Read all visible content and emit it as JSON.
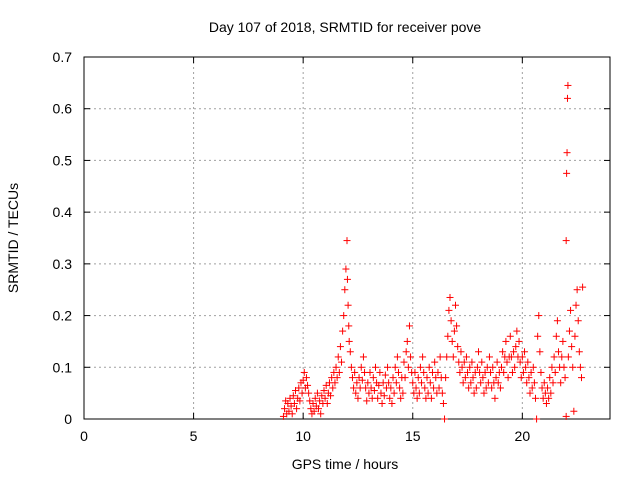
{
  "chart_data": {
    "type": "scatter",
    "title": "Day 107 of 2018, SRMTID for receiver pove",
    "xlabel": "GPS time / hours",
    "ylabel": "SRMTID / TECUs",
    "xlim": [
      0,
      24
    ],
    "ylim": [
      0,
      0.7
    ],
    "x_ticks": [
      0,
      5,
      10,
      15,
      20
    ],
    "x_tick_labels": [
      "0",
      "5",
      "10",
      "15",
      "20"
    ],
    "y_ticks": [
      0,
      0.1,
      0.2,
      0.3,
      0.4,
      0.5,
      0.6,
      0.7
    ],
    "y_tick_labels": [
      "0",
      "0.1",
      "0.2",
      "0.3",
      "0.4",
      "0.5",
      "0.6",
      "0.7"
    ],
    "grid": true,
    "marker": "+",
    "color": "#ff0000",
    "series": [
      {
        "name": "SRMTID",
        "points": [
          [
            9.1,
            0.005
          ],
          [
            9.15,
            0.02
          ],
          [
            9.2,
            0.035
          ],
          [
            9.25,
            0.01
          ],
          [
            9.3,
            0.03
          ],
          [
            9.35,
            0.015
          ],
          [
            9.4,
            0.04
          ],
          [
            9.45,
            0.025
          ],
          [
            9.5,
            0.01
          ],
          [
            9.55,
            0.045
          ],
          [
            9.6,
            0.03
          ],
          [
            9.65,
            0.055
          ],
          [
            9.7,
            0.02
          ],
          [
            9.75,
            0.04
          ],
          [
            9.8,
            0.06
          ],
          [
            9.85,
            0.035
          ],
          [
            9.9,
            0.07
          ],
          [
            9.95,
            0.05
          ],
          [
            10.0,
            0.075
          ],
          [
            10.05,
            0.09
          ],
          [
            10.1,
            0.06
          ],
          [
            10.15,
            0.08
          ],
          [
            10.2,
            0.065
          ],
          [
            10.25,
            0.05
          ],
          [
            10.3,
            0.035
          ],
          [
            10.35,
            0.02
          ],
          [
            10.4,
            0.01
          ],
          [
            10.45,
            0.03
          ],
          [
            10.5,
            0.015
          ],
          [
            10.55,
            0.04
          ],
          [
            10.6,
            0.025
          ],
          [
            10.65,
            0.05
          ],
          [
            10.7,
            0.02
          ],
          [
            10.75,
            0.035
          ],
          [
            10.8,
            0.01
          ],
          [
            10.85,
            0.045
          ],
          [
            10.9,
            0.03
          ],
          [
            10.95,
            0.055
          ],
          [
            11.0,
            0.04
          ],
          [
            11.05,
            0.065
          ],
          [
            11.1,
            0.03
          ],
          [
            11.15,
            0.05
          ],
          [
            11.2,
            0.07
          ],
          [
            11.25,
            0.045
          ],
          [
            11.3,
            0.08
          ],
          [
            11.35,
            0.06
          ],
          [
            11.4,
            0.09
          ],
          [
            11.45,
            0.07
          ],
          [
            11.5,
            0.1
          ],
          [
            11.55,
            0.08
          ],
          [
            11.6,
            0.12
          ],
          [
            11.65,
            0.09
          ],
          [
            11.7,
            0.14
          ],
          [
            11.75,
            0.11
          ],
          [
            11.8,
            0.17
          ],
          [
            11.85,
            0.2
          ],
          [
            11.9,
            0.25
          ],
          [
            11.95,
            0.29
          ],
          [
            12.0,
            0.345
          ],
          [
            12.02,
            0.27
          ],
          [
            12.05,
            0.22
          ],
          [
            12.08,
            0.18
          ],
          [
            12.1,
            0.15
          ],
          [
            12.15,
            0.13
          ],
          [
            12.2,
            0.1
          ],
          [
            12.25,
            0.08
          ],
          [
            12.3,
            0.06
          ],
          [
            12.35,
            0.09
          ],
          [
            12.4,
            0.05
          ],
          [
            12.45,
            0.07
          ],
          [
            12.5,
            0.04
          ],
          [
            12.55,
            0.08
          ],
          [
            12.6,
            0.06
          ],
          [
            12.65,
            0.1
          ],
          [
            12.7,
            0.075
          ],
          [
            12.75,
            0.12
          ],
          [
            12.8,
            0.09
          ],
          [
            12.85,
            0.06
          ],
          [
            12.9,
            0.035
          ],
          [
            12.95,
            0.07
          ],
          [
            13.0,
            0.05
          ],
          [
            13.05,
            0.09
          ],
          [
            13.1,
            0.06
          ],
          [
            13.15,
            0.04
          ],
          [
            13.2,
            0.08
          ],
          [
            13.25,
            0.055
          ],
          [
            13.3,
            0.1
          ],
          [
            13.35,
            0.07
          ],
          [
            13.4,
            0.04
          ],
          [
            13.45,
            0.065
          ],
          [
            13.5,
            0.09
          ],
          [
            13.55,
            0.05
          ],
          [
            13.6,
            0.03
          ],
          [
            13.65,
            0.07
          ],
          [
            13.7,
            0.045
          ],
          [
            13.75,
            0.085
          ],
          [
            13.8,
            0.06
          ],
          [
            13.85,
            0.1
          ],
          [
            13.9,
            0.07
          ],
          [
            13.95,
            0.04
          ],
          [
            14.0,
            0.06
          ],
          [
            14.05,
            0.03
          ],
          [
            14.1,
            0.08
          ],
          [
            14.15,
            0.05
          ],
          [
            14.2,
            0.1
          ],
          [
            14.25,
            0.07
          ],
          [
            14.3,
            0.12
          ],
          [
            14.35,
            0.09
          ],
          [
            14.4,
            0.06
          ],
          [
            14.45,
            0.04
          ],
          [
            14.5,
            0.08
          ],
          [
            14.55,
            0.05
          ],
          [
            14.6,
            0.11
          ],
          [
            14.65,
            0.08
          ],
          [
            14.7,
            0.13
          ],
          [
            14.75,
            0.15
          ],
          [
            14.8,
            0.1
          ],
          [
            14.85,
            0.18
          ],
          [
            14.9,
            0.12
          ],
          [
            14.95,
            0.09
          ],
          [
            15.0,
            0.07
          ],
          [
            15.05,
            0.05
          ],
          [
            15.1,
            0.09
          ],
          [
            15.15,
            0.06
          ],
          [
            15.2,
            0.04
          ],
          [
            15.25,
            0.08
          ],
          [
            15.3,
            0.05
          ],
          [
            15.35,
            0.1
          ],
          [
            15.4,
            0.07
          ],
          [
            15.45,
            0.12
          ],
          [
            15.5,
            0.09
          ],
          [
            15.55,
            0.06
          ],
          [
            15.6,
            0.04
          ],
          [
            15.65,
            0.08
          ],
          [
            15.7,
            0.05
          ],
          [
            15.75,
            0.1
          ],
          [
            15.8,
            0.07
          ],
          [
            15.85,
            0.04
          ],
          [
            15.9,
            0.09
          ],
          [
            15.95,
            0.06
          ],
          [
            16.0,
            0.11
          ],
          [
            16.05,
            0.08
          ],
          [
            16.1,
            0.05
          ],
          [
            16.15,
            0.09
          ],
          [
            16.2,
            0.06
          ],
          [
            16.25,
            0.12
          ],
          [
            16.3,
            0.08
          ],
          [
            16.35,
            0.05
          ],
          [
            16.4,
            0.03
          ],
          [
            16.45,
            0.0
          ],
          [
            16.5,
            0.08
          ],
          [
            16.55,
            0.12
          ],
          [
            16.6,
            0.16
          ],
          [
            16.65,
            0.21
          ],
          [
            16.7,
            0.235
          ],
          [
            16.75,
            0.19
          ],
          [
            16.8,
            0.15
          ],
          [
            16.85,
            0.12
          ],
          [
            16.9,
            0.17
          ],
          [
            16.95,
            0.22
          ],
          [
            17.0,
            0.18
          ],
          [
            17.05,
            0.14
          ],
          [
            17.1,
            0.11
          ],
          [
            17.15,
            0.09
          ],
          [
            17.2,
            0.13
          ],
          [
            17.25,
            0.1
          ],
          [
            17.3,
            0.07
          ],
          [
            17.35,
            0.11
          ],
          [
            17.4,
            0.08
          ],
          [
            17.45,
            0.12
          ],
          [
            17.5,
            0.09
          ],
          [
            17.55,
            0.06
          ],
          [
            17.6,
            0.1
          ],
          [
            17.65,
            0.07
          ],
          [
            17.7,
            0.11
          ],
          [
            17.75,
            0.08
          ],
          [
            17.8,
            0.05
          ],
          [
            17.85,
            0.09
          ],
          [
            17.9,
            0.06
          ],
          [
            17.95,
            0.1
          ],
          [
            18.0,
            0.13
          ],
          [
            18.05,
            0.09
          ],
          [
            18.1,
            0.07
          ],
          [
            18.15,
            0.11
          ],
          [
            18.2,
            0.08
          ],
          [
            18.25,
            0.05
          ],
          [
            18.3,
            0.09
          ],
          [
            18.35,
            0.06
          ],
          [
            18.4,
            0.1
          ],
          [
            18.45,
            0.07
          ],
          [
            18.5,
            0.12
          ],
          [
            18.55,
            0.09
          ],
          [
            18.6,
            0.06
          ],
          [
            18.65,
            0.1
          ],
          [
            18.7,
            0.07
          ],
          [
            18.75,
            0.04
          ],
          [
            18.8,
            0.08
          ],
          [
            18.85,
            0.11
          ],
          [
            18.9,
            0.07
          ],
          [
            18.95,
            0.09
          ],
          [
            19.0,
            0.06
          ],
          [
            19.05,
            0.1
          ],
          [
            19.1,
            0.13
          ],
          [
            19.15,
            0.09
          ],
          [
            19.2,
            0.12
          ],
          [
            19.25,
            0.15
          ],
          [
            19.3,
            0.11
          ],
          [
            19.35,
            0.08
          ],
          [
            19.4,
            0.12
          ],
          [
            19.45,
            0.16
          ],
          [
            19.5,
            0.12
          ],
          [
            19.55,
            0.09
          ],
          [
            19.6,
            0.13
          ],
          [
            19.65,
            0.1
          ],
          [
            19.7,
            0.14
          ],
          [
            19.75,
            0.17
          ],
          [
            19.8,
            0.12
          ],
          [
            19.85,
            0.15
          ],
          [
            19.9,
            0.11
          ],
          [
            19.95,
            0.08
          ],
          [
            20.0,
            0.12
          ],
          [
            20.05,
            0.09
          ],
          [
            20.1,
            0.13
          ],
          [
            20.15,
            0.1
          ],
          [
            20.2,
            0.07
          ],
          [
            20.25,
            0.11
          ],
          [
            20.3,
            0.08
          ],
          [
            20.35,
            0.05
          ],
          [
            20.4,
            0.09
          ],
          [
            20.45,
            0.06
          ],
          [
            20.5,
            0.1
          ],
          [
            20.55,
            0.07
          ],
          [
            20.6,
            0.04
          ],
          [
            20.65,
            0.0
          ],
          [
            20.7,
            0.16
          ],
          [
            20.75,
            0.2
          ],
          [
            20.8,
            0.13
          ],
          [
            20.85,
            0.09
          ],
          [
            20.9,
            0.06
          ],
          [
            20.95,
            0.04
          ],
          [
            21.0,
            0.07
          ],
          [
            21.05,
            0.05
          ],
          [
            21.1,
            0.03
          ],
          [
            21.15,
            0.06
          ],
          [
            21.2,
            0.04
          ],
          [
            21.25,
            0.08
          ],
          [
            21.3,
            0.05
          ],
          [
            21.35,
            0.1
          ],
          [
            21.4,
            0.07
          ],
          [
            21.45,
            0.12
          ],
          [
            21.5,
            0.09
          ],
          [
            21.55,
            0.16
          ],
          [
            21.6,
            0.19
          ],
          [
            21.65,
            0.13
          ],
          [
            21.7,
            0.1
          ],
          [
            21.75,
            0.07
          ],
          [
            21.8,
            0.12
          ],
          [
            21.85,
            0.15
          ],
          [
            21.9,
            0.1
          ],
          [
            21.95,
            0.08
          ],
          [
            22.0,
            0.345
          ],
          [
            22.02,
            0.475
          ],
          [
            22.04,
            0.515
          ],
          [
            22.06,
            0.62
          ],
          [
            22.08,
            0.645
          ],
          [
            22.0,
            0.005
          ],
          [
            22.1,
            0.12
          ],
          [
            22.15,
            0.17
          ],
          [
            22.2,
            0.21
          ],
          [
            22.25,
            0.14
          ],
          [
            22.3,
            0.1
          ],
          [
            22.35,
            0.015
          ],
          [
            22.4,
            0.16
          ],
          [
            22.45,
            0.22
          ],
          [
            22.5,
            0.25
          ],
          [
            22.55,
            0.19
          ],
          [
            22.6,
            0.13
          ],
          [
            22.65,
            0.1
          ],
          [
            22.7,
            0.08
          ],
          [
            22.75,
            0.255
          ]
        ]
      }
    ]
  }
}
